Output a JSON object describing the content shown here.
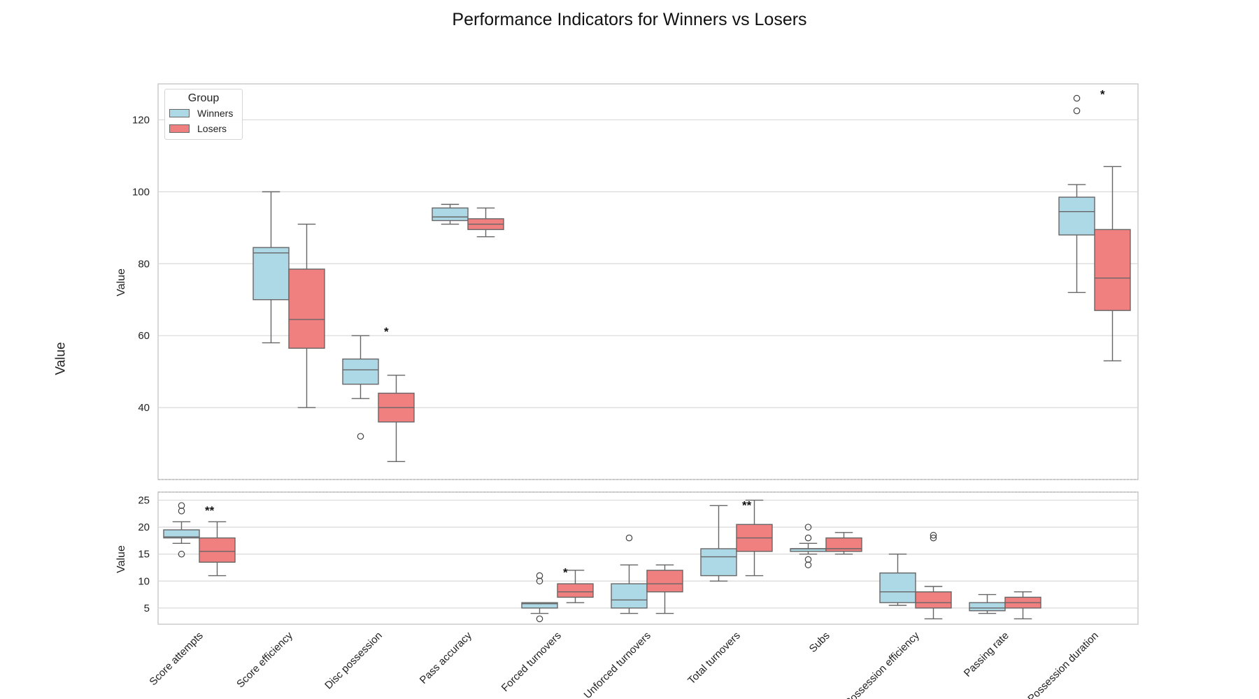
{
  "title": "Performance Indicators for Winners vs Losers",
  "figure_ylabel": "Value",
  "colors": {
    "Winners": "#add8e6",
    "Losers": "#f08080"
  },
  "legend": {
    "title": "Group",
    "position": "top-left",
    "items": [
      "Winners",
      "Losers"
    ]
  },
  "chart_data": [
    {
      "type": "box",
      "panel": "top",
      "title": "",
      "xlabel": "",
      "ylabel": "Value",
      "ylim": [
        20,
        130
      ],
      "yticks": [
        40,
        60,
        80,
        100,
        120
      ],
      "grid": true,
      "categories": [
        "Score attempts",
        "Score efficiency",
        "Disc possession",
        "Pass accuracy",
        "Forced turnovers",
        "Unforced turnovers",
        "Total turnovers",
        "Subs",
        "Possession efficiency",
        "Passing rate",
        "Possession duration"
      ],
      "series": [
        {
          "name": "Winners",
          "boxes": [
            null,
            {
              "whislo": 58,
              "q1": 70,
              "med": 83,
              "q3": 84.5,
              "whishi": 100,
              "fliers": []
            },
            {
              "whislo": 42.5,
              "q1": 46.5,
              "med": 50.5,
              "q3": 53.5,
              "whishi": 60,
              "fliers": [
                32
              ]
            },
            {
              "whislo": 91,
              "q1": 92,
              "med": 93,
              "q3": 95.5,
              "whishi": 96.5,
              "fliers": []
            },
            null,
            null,
            null,
            null,
            null,
            null,
            {
              "whislo": 72,
              "q1": 88,
              "med": 94.5,
              "q3": 98.5,
              "whishi": 102,
              "fliers": [
                122.5,
                126
              ]
            }
          ]
        },
        {
          "name": "Losers",
          "boxes": [
            null,
            {
              "whislo": 40,
              "q1": 56.5,
              "med": 64.5,
              "q3": 78.5,
              "whishi": 91,
              "fliers": []
            },
            {
              "whislo": 25,
              "q1": 36,
              "med": 40,
              "q3": 44,
              "whishi": 49,
              "fliers": []
            },
            {
              "whislo": 87.5,
              "q1": 89.5,
              "med": 91,
              "q3": 92.5,
              "whishi": 95.5,
              "fliers": []
            },
            null,
            null,
            null,
            null,
            null,
            null,
            {
              "whislo": 53,
              "q1": 67,
              "med": 76,
              "q3": 89.5,
              "whishi": 107,
              "fliers": []
            }
          ]
        }
      ],
      "annotations": [
        {
          "category": "Disc possession",
          "text": "*",
          "y": 61
        },
        {
          "category": "Possession duration",
          "text": "*",
          "y": 127
        }
      ]
    },
    {
      "type": "box",
      "panel": "bottom",
      "title": "",
      "xlabel": "",
      "ylabel": "Value",
      "ylim": [
        2,
        26.5
      ],
      "yticks": [
        5,
        10,
        15,
        20,
        25
      ],
      "grid": true,
      "categories": [
        "Score attempts",
        "Score efficiency",
        "Disc possession",
        "Pass accuracy",
        "Forced turnovers",
        "Unforced turnovers",
        "Total turnovers",
        "Subs",
        "Possession efficiency",
        "Passing rate",
        "Possession duration"
      ],
      "series": [
        {
          "name": "Winners",
          "boxes": [
            {
              "whislo": 17,
              "q1": 18,
              "med": 18.2,
              "q3": 19.5,
              "whishi": 21,
              "fliers": [
                24,
                23,
                15
              ]
            },
            null,
            null,
            null,
            {
              "whislo": 4,
              "q1": 5,
              "med": 5.8,
              "q3": 6,
              "whishi": 6,
              "fliers": [
                11,
                10,
                3
              ]
            },
            {
              "whislo": 4,
              "q1": 5,
              "med": 6.5,
              "q3": 9.5,
              "whishi": 13,
              "fliers": [
                18
              ]
            },
            {
              "whislo": 10,
              "q1": 11,
              "med": 14.5,
              "q3": 16,
              "whishi": 24,
              "fliers": []
            },
            {
              "whislo": 15,
              "q1": 15.5,
              "med": 16,
              "q3": 16,
              "whishi": 17,
              "fliers": [
                20,
                18,
                14,
                13
              ]
            },
            {
              "whislo": 5.5,
              "q1": 6,
              "med": 8,
              "q3": 11.5,
              "whishi": 15,
              "fliers": []
            },
            {
              "whislo": 4,
              "q1": 4.5,
              "med": 5,
              "q3": 6,
              "whishi": 7.5,
              "fliers": []
            },
            null
          ]
        },
        {
          "name": "Losers",
          "boxes": [
            {
              "whislo": 11,
              "q1": 13.5,
              "med": 15.5,
              "q3": 18,
              "whishi": 21,
              "fliers": []
            },
            null,
            null,
            null,
            {
              "whislo": 6,
              "q1": 7,
              "med": 8,
              "q3": 9.5,
              "whishi": 12,
              "fliers": []
            },
            {
              "whislo": 4,
              "q1": 8,
              "med": 9.5,
              "q3": 12,
              "whishi": 13,
              "fliers": []
            },
            {
              "whislo": 11,
              "q1": 15.5,
              "med": 18,
              "q3": 20.5,
              "whishi": 25,
              "fliers": []
            },
            {
              "whislo": 15,
              "q1": 15.5,
              "med": 16,
              "q3": 18,
              "whishi": 19,
              "fliers": []
            },
            {
              "whislo": 3,
              "q1": 5,
              "med": 6,
              "q3": 8,
              "whishi": 9,
              "fliers": [
                18.5,
                18
              ]
            },
            {
              "whislo": 3,
              "q1": 5,
              "med": 6,
              "q3": 7,
              "whishi": 8,
              "fliers": []
            },
            null
          ]
        }
      ],
      "annotations": [
        {
          "category": "Score attempts",
          "text": "**",
          "y": 23
        },
        {
          "category": "Forced turnovers",
          "text": "*",
          "y": 11.5
        },
        {
          "category": "Total turnovers",
          "text": "**",
          "y": 24
        }
      ]
    }
  ]
}
